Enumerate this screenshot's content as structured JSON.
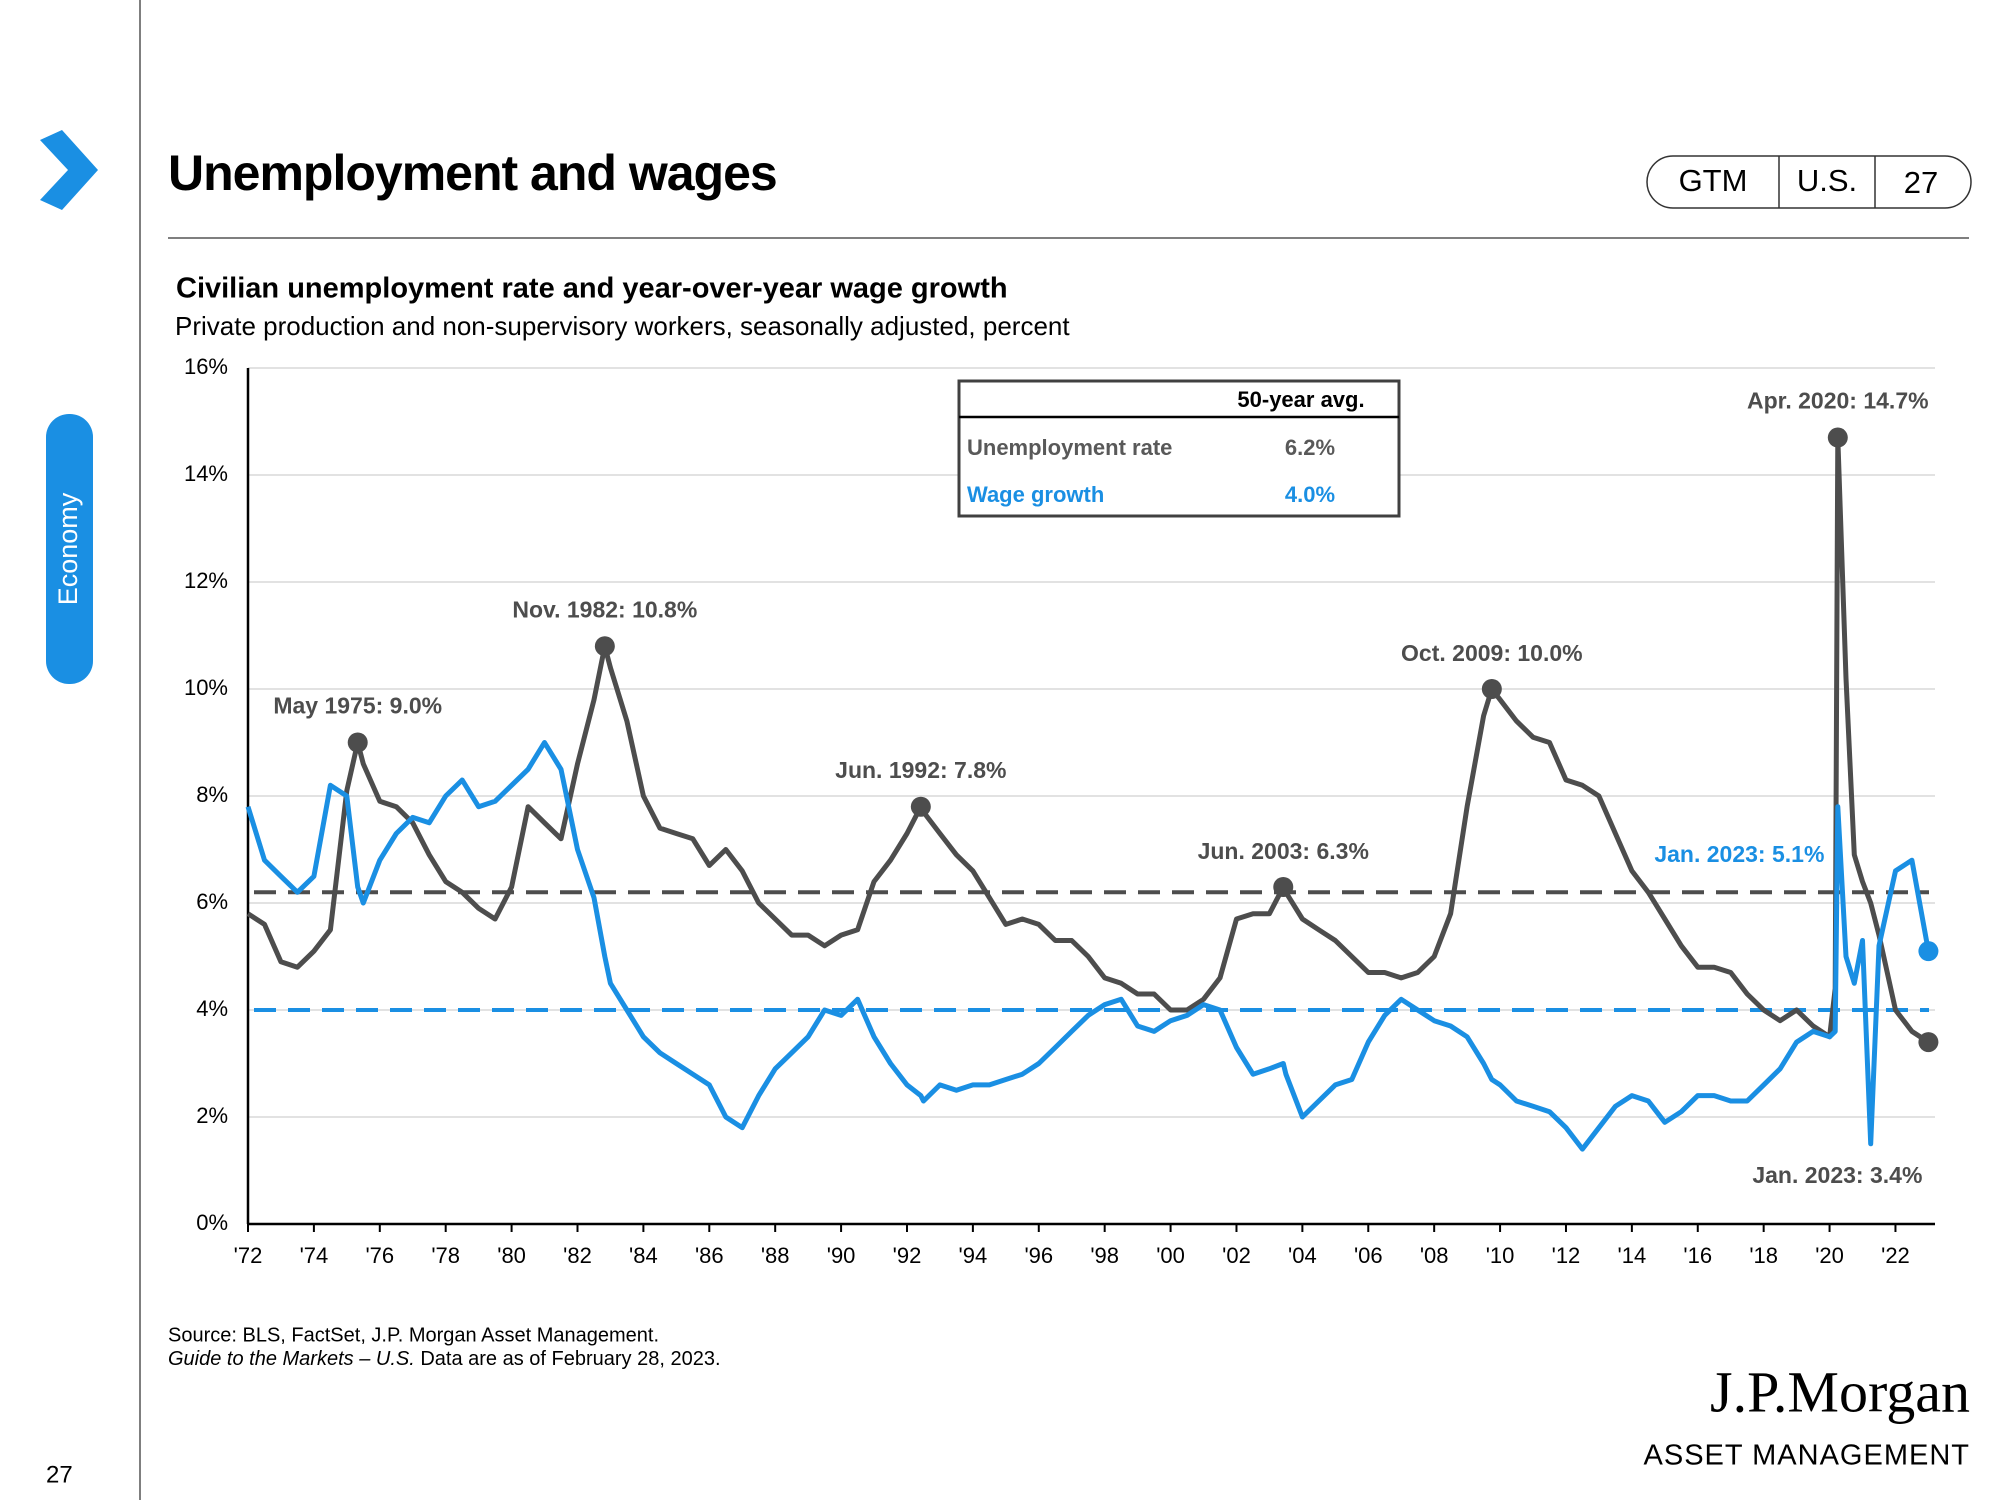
{
  "page": {
    "title": "Unemployment and wages",
    "tags": [
      "GTM",
      "U.S.",
      "27"
    ],
    "section": "Economy",
    "page_number": "27",
    "source": "Source: BLS, FactSet, J.P. Morgan Asset Management.",
    "guide": "Guide to the Markets – U.S.",
    "date_note": " Data are as of February 28, 2023.",
    "logo": "J.P.Morgan",
    "logo_sub": "ASSET MANAGEMENT"
  },
  "chart_data": {
    "type": "line",
    "title": "Civilian unemployment rate and year-over-year wage growth",
    "subtitle": "Private production and non-supervisory workers, seasonally adjusted, percent",
    "x": [
      1972,
      1972.5,
      1973,
      1973.5,
      1974,
      1974.5,
      1975,
      1975.33,
      1975.5,
      1976,
      1976.5,
      1977,
      1977.5,
      1978,
      1978.5,
      1979,
      1979.5,
      1980,
      1980.5,
      1981,
      1981.5,
      1982,
      1982.5,
      1982.83,
      1983,
      1983.5,
      1984,
      1984.5,
      1985,
      1985.5,
      1986,
      1986.5,
      1987,
      1987.5,
      1988,
      1988.5,
      1989,
      1989.5,
      1990,
      1990.5,
      1991,
      1991.5,
      1992,
      1992.42,
      1992.5,
      1993,
      1993.5,
      1994,
      1994.5,
      1995,
      1995.5,
      1996,
      1996.5,
      1997,
      1997.5,
      1998,
      1998.5,
      1999,
      1999.5,
      2000,
      2000.5,
      2001,
      2001.5,
      2002,
      2002.5,
      2003,
      2003.42,
      2003.5,
      2004,
      2004.5,
      2005,
      2005.5,
      2006,
      2006.5,
      2007,
      2007.5,
      2008,
      2008.5,
      2009,
      2009.5,
      2009.75,
      2010,
      2010.5,
      2011,
      2011.5,
      2012,
      2012.5,
      2013,
      2013.5,
      2014,
      2014.5,
      2015,
      2015.5,
      2016,
      2016.5,
      2017,
      2017.5,
      2018,
      2018.5,
      2019,
      2019.5,
      2020,
      2020.17,
      2020.25,
      2020.5,
      2020.75,
      2021,
      2021.25,
      2021.5,
      2022,
      2022.5,
      2023
    ],
    "series": [
      {
        "name": "Unemployment rate",
        "color": "#4d4d4d",
        "values": [
          5.8,
          5.6,
          4.9,
          4.8,
          5.1,
          5.5,
          8.1,
          9.0,
          8.6,
          7.9,
          7.8,
          7.5,
          6.9,
          6.4,
          6.2,
          5.9,
          5.7,
          6.3,
          7.8,
          7.5,
          7.2,
          8.6,
          9.8,
          10.8,
          10.4,
          9.4,
          8.0,
          7.4,
          7.3,
          7.2,
          6.7,
          7.0,
          6.6,
          6.0,
          5.7,
          5.4,
          5.4,
          5.2,
          5.4,
          5.5,
          6.4,
          6.8,
          7.3,
          7.8,
          7.7,
          7.3,
          6.9,
          6.6,
          6.1,
          5.6,
          5.7,
          5.6,
          5.3,
          5.3,
          5.0,
          4.6,
          4.5,
          4.3,
          4.3,
          4.0,
          4.0,
          4.2,
          4.6,
          5.7,
          5.8,
          5.8,
          6.3,
          6.2,
          5.7,
          5.5,
          5.3,
          5.0,
          4.7,
          4.7,
          4.6,
          4.7,
          5.0,
          5.8,
          7.8,
          9.5,
          10.0,
          9.8,
          9.4,
          9.1,
          9.0,
          8.3,
          8.2,
          8.0,
          7.3,
          6.6,
          6.2,
          5.7,
          5.2,
          4.8,
          4.8,
          4.7,
          4.3,
          4.0,
          3.8,
          4.0,
          3.7,
          3.5,
          4.4,
          14.7,
          10.2,
          6.9,
          6.4,
          6.0,
          5.4,
          4.0,
          3.6,
          3.4
        ]
      },
      {
        "name": "Wage growth",
        "color": "#1a8fe3",
        "values": [
          7.8,
          6.8,
          6.5,
          6.2,
          6.5,
          8.2,
          8.0,
          6.3,
          6.0,
          6.8,
          7.3,
          7.6,
          7.5,
          8.0,
          8.3,
          7.8,
          7.9,
          8.2,
          8.5,
          9.0,
          8.5,
          7.0,
          6.1,
          5.0,
          4.5,
          4.0,
          3.5,
          3.2,
          3.0,
          2.8,
          2.6,
          2.0,
          1.8,
          2.4,
          2.9,
          3.2,
          3.5,
          4.0,
          3.9,
          4.2,
          3.5,
          3.0,
          2.6,
          2.4,
          2.3,
          2.6,
          2.5,
          2.6,
          2.6,
          2.7,
          2.8,
          3.0,
          3.3,
          3.6,
          3.9,
          4.1,
          4.2,
          3.7,
          3.6,
          3.8,
          3.9,
          4.1,
          4.0,
          3.3,
          2.8,
          2.9,
          3.0,
          2.8,
          2.0,
          2.3,
          2.6,
          2.7,
          3.4,
          3.9,
          4.2,
          4.0,
          3.8,
          3.7,
          3.5,
          3.0,
          2.7,
          2.6,
          2.3,
          2.2,
          2.1,
          1.8,
          1.4,
          1.8,
          2.2,
          2.4,
          2.3,
          1.9,
          2.1,
          2.4,
          2.4,
          2.3,
          2.3,
          2.6,
          2.9,
          3.4,
          3.6,
          3.5,
          3.6,
          7.8,
          5.0,
          4.5,
          5.3,
          1.5,
          5.2,
          6.6,
          6.8,
          5.1
        ]
      }
    ],
    "averages": {
      "header": "50-year avg.",
      "rows": [
        {
          "name": "Unemployment rate",
          "value": 6.2,
          "label": "6.2%",
          "color": "#4d4d4d"
        },
        {
          "name": "Wage growth",
          "value": 4.0,
          "label": "4.0%",
          "color": "#1a8fe3"
        }
      ]
    },
    "annotations": [
      {
        "label": "May 1975: 9.0%",
        "x": 1975.33,
        "y": 9.0,
        "color": "#4d4d4d"
      },
      {
        "label": "Nov. 1982: 10.8%",
        "x": 1982.83,
        "y": 10.8,
        "color": "#4d4d4d"
      },
      {
        "label": "Jun. 1992: 7.8%",
        "x": 1992.42,
        "y": 7.8,
        "color": "#4d4d4d"
      },
      {
        "label": "Jun. 2003: 6.3%",
        "x": 2003.42,
        "y": 6.3,
        "color": "#4d4d4d"
      },
      {
        "label": "Oct. 2009: 10.0%",
        "x": 2009.75,
        "y": 10.0,
        "color": "#4d4d4d"
      },
      {
        "label": "Apr. 2020: 14.7%",
        "x": 2020.25,
        "y": 14.7,
        "color": "#4d4d4d"
      },
      {
        "label": "Jan. 2023: 5.1%",
        "x": 2023,
        "y": 5.1,
        "color": "#1a8fe3"
      },
      {
        "label": "Jan. 2023: 3.4%",
        "x": 2023,
        "y": 3.4,
        "color": "#4d4d4d"
      }
    ],
    "xlim": [
      1972,
      2023.2
    ],
    "xticks": [
      {
        "value": 1972,
        "label": "'72"
      },
      {
        "value": 1974,
        "label": "'74"
      },
      {
        "value": 1976,
        "label": "'76"
      },
      {
        "value": 1978,
        "label": "'78"
      },
      {
        "value": 1980,
        "label": "'80"
      },
      {
        "value": 1982,
        "label": "'82"
      },
      {
        "value": 1984,
        "label": "'84"
      },
      {
        "value": 1986,
        "label": "'86"
      },
      {
        "value": 1988,
        "label": "'88"
      },
      {
        "value": 1990,
        "label": "'90"
      },
      {
        "value": 1992,
        "label": "'92"
      },
      {
        "value": 1994,
        "label": "'94"
      },
      {
        "value": 1996,
        "label": "'96"
      },
      {
        "value": 1998,
        "label": "'98"
      },
      {
        "value": 2000,
        "label": "'00"
      },
      {
        "value": 2002,
        "label": "'02"
      },
      {
        "value": 2004,
        "label": "'04"
      },
      {
        "value": 2006,
        "label": "'06"
      },
      {
        "value": 2008,
        "label": "'08"
      },
      {
        "value": 2010,
        "label": "'10"
      },
      {
        "value": 2012,
        "label": "'12"
      },
      {
        "value": 2014,
        "label": "'14"
      },
      {
        "value": 2016,
        "label": "'16"
      },
      {
        "value": 2018,
        "label": "'18"
      },
      {
        "value": 2020,
        "label": "'20"
      },
      {
        "value": 2022,
        "label": "'22"
      }
    ],
    "ylim": [
      0,
      16
    ],
    "yticks": [
      {
        "value": 0,
        "label": "0%"
      },
      {
        "value": 2,
        "label": "2%"
      },
      {
        "value": 4,
        "label": "4%"
      },
      {
        "value": 6,
        "label": "6%"
      },
      {
        "value": 8,
        "label": "8%"
      },
      {
        "value": 10,
        "label": "10%"
      },
      {
        "value": 12,
        "label": "12%"
      },
      {
        "value": 14,
        "label": "14%"
      },
      {
        "value": 16,
        "label": "16%"
      }
    ],
    "grid": true
  }
}
